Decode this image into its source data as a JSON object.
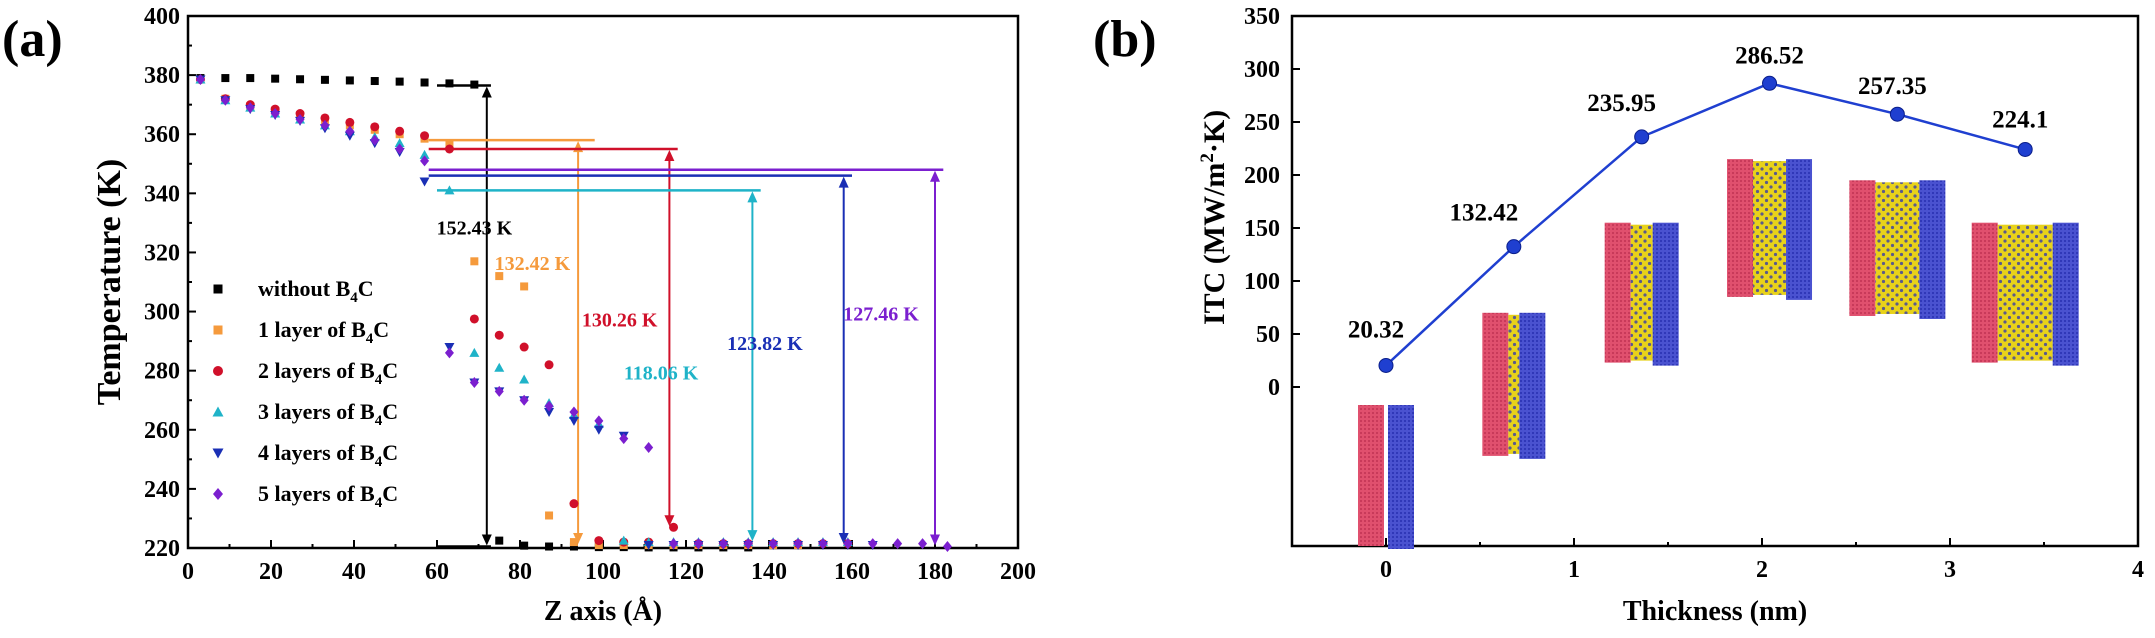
{
  "panel_a_label": "(a)",
  "panel_b_label": "(b)",
  "chart_data": [
    {
      "panel": "(a)",
      "type": "scatter",
      "xlabel": "Z axis (Å)",
      "ylabel": "Temperature (K)",
      "xlim": [
        0,
        200
      ],
      "ylim": [
        220,
        400
      ],
      "xticks": [
        0,
        20,
        40,
        60,
        80,
        100,
        120,
        140,
        160,
        180,
        200
      ],
      "yticks": [
        220,
        240,
        260,
        280,
        300,
        320,
        340,
        360,
        380,
        400
      ],
      "grid": false,
      "legend_position": "bottom-left",
      "series": [
        {
          "name": "without B₄C",
          "legend_parts": [
            "without B",
            "4",
            "C"
          ],
          "color": "#000000",
          "marker": "square",
          "x": [
            3,
            9,
            15,
            21,
            27,
            33,
            39,
            45,
            51,
            57,
            63,
            69,
            75,
            81,
            87,
            93,
            99,
            105,
            111,
            117,
            123,
            129,
            135
          ],
          "y": [
            379,
            379,
            379,
            378.8,
            378.6,
            378.4,
            378.2,
            378,
            377.8,
            377.5,
            377.2,
            376.8,
            222.5,
            220.8,
            220.5,
            220.5,
            220.3,
            220.3,
            220.2,
            220.2,
            220.2,
            220.2,
            220.2
          ]
        },
        {
          "name": "1 layer of B₄C",
          "legend_parts": [
            "1 layer of B",
            "4",
            "C"
          ],
          "color": "#F59A3C",
          "marker": "square",
          "x": [
            3,
            9,
            15,
            21,
            27,
            33,
            39,
            45,
            51,
            57,
            63,
            69,
            75,
            81,
            87,
            93,
            99,
            105,
            111,
            117,
            123,
            129,
            135,
            141,
            147
          ],
          "y": [
            378.5,
            372,
            369.5,
            368,
            366.5,
            364.5,
            363,
            361.5,
            360,
            358.5,
            357,
            317,
            312,
            308.5,
            231,
            222,
            221,
            221,
            221,
            221,
            221,
            221,
            221,
            221,
            221
          ]
        },
        {
          "name": "2 layers of B₄C",
          "legend_parts": [
            "2 layers of B",
            "4",
            "C"
          ],
          "color": "#D0102A",
          "marker": "circle",
          "x": [
            3,
            9,
            15,
            21,
            27,
            33,
            39,
            45,
            51,
            57,
            63,
            69,
            75,
            81,
            87,
            93,
            99,
            105,
            111,
            117,
            123,
            129,
            135,
            141,
            147,
            153,
            159
          ],
          "y": [
            378.5,
            372,
            370,
            368.5,
            367,
            365.5,
            364,
            362.5,
            361,
            359.5,
            355,
            297.5,
            292,
            288,
            282,
            235,
            222.5,
            222,
            222,
            227,
            221.5,
            221.5,
            221.5,
            221.5,
            221.5,
            221.5,
            221.5
          ]
        },
        {
          "name": "3 layers of B₄C",
          "legend_parts": [
            "3 layers of B",
            "4",
            "C"
          ],
          "color": "#1FB3C8",
          "marker": "triangle-up",
          "x": [
            3,
            9,
            15,
            21,
            27,
            33,
            39,
            45,
            51,
            57,
            63,
            69,
            75,
            81,
            87,
            93,
            99,
            105,
            111,
            117,
            123,
            129,
            135,
            141,
            147,
            153,
            159
          ],
          "y": [
            378.5,
            371.5,
            369,
            367,
            365,
            363,
            361,
            359,
            357,
            353,
            341,
            286,
            281,
            277,
            269,
            265,
            262,
            222.5,
            222,
            222,
            222,
            222,
            222,
            222,
            222,
            222,
            222
          ]
        },
        {
          "name": "4 layers of B₄C",
          "legend_parts": [
            "4 layers of B",
            "4",
            "C"
          ],
          "color": "#1A2FB5",
          "marker": "triangle-down",
          "x": [
            3,
            9,
            15,
            21,
            27,
            33,
            39,
            45,
            51,
            57,
            63,
            69,
            75,
            81,
            87,
            93,
            99,
            105,
            111,
            117,
            123,
            129,
            135,
            141,
            147,
            153,
            159,
            165
          ],
          "y": [
            378.5,
            371.5,
            368.5,
            366.5,
            364.5,
            362,
            359.5,
            357,
            354,
            344,
            288,
            276,
            273,
            270,
            266,
            263,
            260,
            258,
            221,
            221,
            221,
            221,
            221,
            221,
            221,
            221,
            221,
            221
          ]
        },
        {
          "name": "5 layers of B₄C",
          "legend_parts": [
            "5 layers of B",
            "4",
            "C"
          ],
          "color": "#7B1FCF",
          "marker": "diamond",
          "x": [
            3,
            9,
            15,
            21,
            27,
            33,
            39,
            45,
            51,
            57,
            63,
            69,
            75,
            81,
            87,
            93,
            99,
            105,
            111,
            117,
            123,
            129,
            135,
            141,
            147,
            153,
            159,
            165,
            171,
            177,
            183
          ],
          "y": [
            378.5,
            371.5,
            369,
            367,
            365,
            363,
            361,
            358,
            355,
            351,
            286,
            276,
            273,
            270,
            268,
            266,
            263,
            257,
            254,
            221.5,
            221.5,
            221.5,
            221.5,
            221.5,
            221.5,
            221.5,
            221.5,
            221.5,
            221.5,
            221.5,
            220.5
          ]
        }
      ],
      "annotations": [
        {
          "label": "152.43 K",
          "color": "#000000",
          "x_line": 72,
          "y_top": 376.5,
          "y_bottom": 220.5,
          "x_start": 60,
          "x_end": 73,
          "x_label": 69,
          "y_label": 326
        },
        {
          "label": "132.42 K",
          "color": "#F59A3C",
          "x_line": 94,
          "y_top": 358,
          "y_bottom": 221,
          "x_start": 58,
          "x_end": 98,
          "x_label": 83,
          "y_label": 314
        },
        {
          "label": "130.26 K",
          "color": "#D0102A",
          "x_line": 116,
          "y_top": 355,
          "y_bottom": 227,
          "x_start": 58,
          "x_end": 118,
          "x_label": 104,
          "y_label": 295
        },
        {
          "label": "118.06 K",
          "color": "#1FB3C8",
          "x_line": 136,
          "y_top": 341,
          "y_bottom": 222,
          "x_start": 60,
          "x_end": 138,
          "x_label": 114,
          "y_label": 277
        },
        {
          "label": "123.82 K",
          "color": "#1A2FB5",
          "x_line": 158,
          "y_top": 346,
          "y_bottom": 221,
          "x_start": 58,
          "x_end": 160,
          "x_label": 139,
          "y_label": 287
        },
        {
          "label": "127.46 K",
          "color": "#7B1FCF",
          "x_line": 180,
          "y_top": 348,
          "y_bottom": 220.5,
          "x_start": 58,
          "x_end": 182,
          "x_label": 167,
          "y_label": 297
        }
      ]
    },
    {
      "panel": "(b)",
      "type": "line",
      "xlabel": "Thickness (nm)",
      "ylabel": "ITC (MW/m²·K)",
      "ylabel_parts": [
        "ITC (MW/m",
        "2",
        "·K)"
      ],
      "xlim": [
        -0.5,
        4
      ],
      "ylim": [
        -150,
        350
      ],
      "xticks": [
        0,
        1,
        2,
        3,
        4
      ],
      "yticks": [
        0,
        50,
        100,
        150,
        200,
        250,
        300,
        350
      ],
      "grid": false,
      "color": "#1F3FD0",
      "x": [
        0,
        0.68,
        1.36,
        2.04,
        2.72,
        3.4
      ],
      "y": [
        20.32,
        132.42,
        235.95,
        286.52,
        257.35,
        224.1
      ],
      "value_labels": [
        "20.32",
        "132.42",
        "235.95",
        "286.52",
        "257.35",
        "224.1"
      ]
    }
  ]
}
